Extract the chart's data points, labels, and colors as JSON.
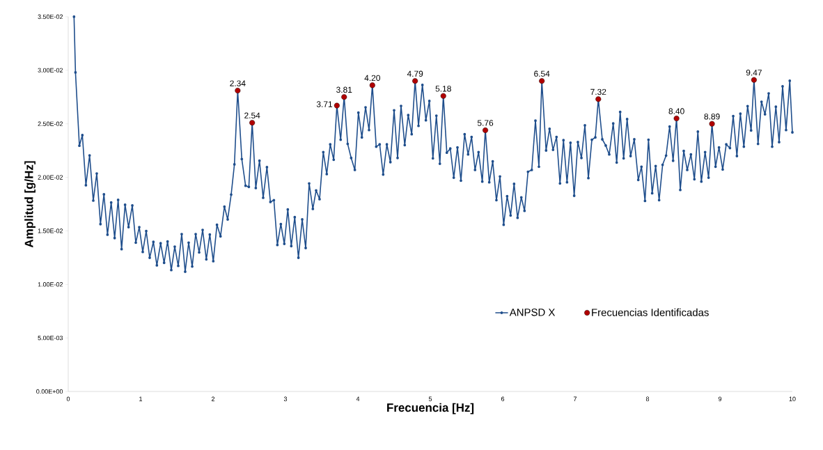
{
  "chart_data": {
    "type": "line",
    "xlabel": "Frecuencia [Hz]",
    "ylabel": "Amplitud [g/Hz]",
    "xlim": [
      0,
      10
    ],
    "ylim": [
      0,
      0.035
    ],
    "xticks": [
      0,
      1,
      2,
      3,
      4,
      5,
      6,
      7,
      8,
      9,
      10
    ],
    "yticks": [
      {
        "value": 0,
        "label": "0.00E+00"
      },
      {
        "value": 0.005,
        "label": "5.00E-03"
      },
      {
        "value": 0.01,
        "label": "1.00E-02"
      },
      {
        "value": 0.015,
        "label": "1.50E-02"
      },
      {
        "value": 0.02,
        "label": "2.00E-02"
      },
      {
        "value": 0.025,
        "label": "2.50E-02"
      },
      {
        "value": 0.03,
        "label": "3.00E-02"
      },
      {
        "value": 0.035,
        "label": "3.50E-02"
      }
    ],
    "legend": "bottom right",
    "series": [
      {
        "name": "ANPSD X",
        "color": "#1f4e8c",
        "marker": "circle",
        "x": [
          0.08,
          0.1,
          0.154,
          0.195,
          0.244,
          0.295,
          0.346,
          0.394,
          0.445,
          0.493,
          0.542,
          0.593,
          0.641,
          0.689,
          0.737,
          0.785,
          0.833,
          0.885,
          0.933,
          0.981,
          1.029,
          1.077,
          1.125,
          1.176,
          1.224,
          1.276,
          1.324,
          1.372,
          1.423,
          1.471,
          1.519,
          1.567,
          1.615,
          1.663,
          1.712,
          1.76,
          1.808,
          1.856,
          1.907,
          1.955,
          2.003,
          2.054,
          2.103,
          2.157,
          2.202,
          2.25,
          2.295,
          2.34,
          2.397,
          2.449,
          2.494,
          2.54,
          2.59,
          2.641,
          2.692,
          2.744,
          2.792,
          2.84,
          2.888,
          2.936,
          2.984,
          3.032,
          3.08,
          3.128,
          3.179,
          3.231,
          3.279,
          3.327,
          3.378,
          3.423,
          3.471,
          3.522,
          3.57,
          3.618,
          3.666,
          3.71,
          3.762,
          3.81,
          3.859,
          3.907,
          3.958,
          4.007,
          4.055,
          4.106,
          4.154,
          4.2,
          4.253,
          4.301,
          4.349,
          4.4,
          4.449,
          4.5,
          4.548,
          4.596,
          4.647,
          4.695,
          4.743,
          4.79,
          4.837,
          4.891,
          4.939,
          4.987,
          5.036,
          5.084,
          5.132,
          5.18,
          5.228,
          5.276,
          5.324,
          5.375,
          5.423,
          5.474,
          5.522,
          5.57,
          5.618,
          5.666,
          5.718,
          5.76,
          5.814,
          5.862,
          5.913,
          5.962,
          6.013,
          6.061,
          6.109,
          6.157,
          6.205,
          6.257,
          6.301,
          6.349,
          6.401,
          6.452,
          6.5,
          6.54,
          6.599,
          6.647,
          6.695,
          6.743,
          6.791,
          6.839,
          6.888,
          6.936,
          6.987,
          7.038,
          7.087,
          7.135,
          7.183,
          7.231,
          7.279,
          7.32,
          7.375,
          7.423,
          7.471,
          7.526,
          7.574,
          7.622,
          7.67,
          7.718,
          7.766,
          7.817,
          7.872,
          7.916,
          7.965,
          8.013,
          8.064,
          8.112,
          8.16,
          8.208,
          8.256,
          8.305,
          8.353,
          8.4,
          8.452,
          8.5,
          8.548,
          8.599,
          8.647,
          8.695,
          8.743,
          8.795,
          8.843,
          8.89,
          8.939,
          8.987,
          9.038,
          9.087,
          9.138,
          9.183,
          9.234,
          9.282,
          9.33,
          9.382,
          9.43,
          9.47,
          9.526,
          9.574,
          9.622,
          9.673,
          9.721,
          9.772,
          9.817,
          9.865,
          9.913,
          9.964,
          10.0
        ],
        "values": [
          0.035,
          0.0298,
          0.02295,
          0.02394,
          0.01926,
          0.02205,
          0.01783,
          0.02036,
          0.01563,
          0.01841,
          0.01464,
          0.01765,
          0.01433,
          0.01789,
          0.01329,
          0.01744,
          0.01535,
          0.01737,
          0.0139,
          0.01535,
          0.01303,
          0.01498,
          0.01249,
          0.01397,
          0.01178,
          0.01384,
          0.01202,
          0.01401,
          0.01134,
          0.01353,
          0.01173,
          0.0147,
          0.01119,
          0.0139,
          0.01167,
          0.0147,
          0.01299,
          0.01509,
          0.01234,
          0.01466,
          0.01217,
          0.01557,
          0.01449,
          0.01726,
          0.01607,
          0.01839,
          0.02121,
          0.0281,
          0.02171,
          0.01921,
          0.01911,
          0.0251,
          0.019,
          0.02155,
          0.01809,
          0.02095,
          0.0177,
          0.01787,
          0.01368,
          0.01563,
          0.01379,
          0.017,
          0.01358,
          0.01628,
          0.01249,
          0.01607,
          0.0134,
          0.01943,
          0.01705,
          0.01878,
          0.01796,
          0.02236,
          0.0203,
          0.02308,
          0.02164,
          0.0267,
          0.02351,
          0.0275,
          0.02312,
          0.02181,
          0.02069,
          0.02604,
          0.02373,
          0.02654,
          0.02442,
          0.0286,
          0.02286,
          0.02308,
          0.02026,
          0.02308,
          0.02142,
          0.02626,
          0.02181,
          0.02667,
          0.02301,
          0.02581,
          0.02403,
          0.029,
          0.02481,
          0.02863,
          0.02533,
          0.02713,
          0.02177,
          0.02576,
          0.02127,
          0.0276,
          0.0223,
          0.02269,
          0.01997,
          0.02279,
          0.01969,
          0.02403,
          0.02214,
          0.02377,
          0.02069,
          0.02236,
          0.0196,
          0.0244,
          0.01954,
          0.02149,
          0.01787,
          0.02008,
          0.01557,
          0.01824,
          0.01644,
          0.01939,
          0.01622,
          0.01813,
          0.01687,
          0.02052,
          0.02069,
          0.02529,
          0.02099,
          0.029,
          0.02251,
          0.02453,
          0.02257,
          0.02377,
          0.01943,
          0.02347,
          0.01954,
          0.02323,
          0.01828,
          0.02329,
          0.02181,
          0.02485,
          0.01993,
          0.02351,
          0.02373,
          0.0273,
          0.02355,
          0.02297,
          0.02214,
          0.02503,
          0.02138,
          0.02611,
          0.02177,
          0.02544,
          0.02199,
          0.02355,
          0.01976,
          0.02099,
          0.0178,
          0.02351,
          0.01851,
          0.02106,
          0.01787,
          0.02117,
          0.02203,
          0.02474,
          0.02155,
          0.0255,
          0.01882,
          0.02246,
          0.02069,
          0.02214,
          0.01982,
          0.02427,
          0.0196,
          0.02236,
          0.01997,
          0.025,
          0.02099,
          0.02279,
          0.02073,
          0.02308,
          0.02273,
          0.02572,
          0.02199,
          0.02594,
          0.02286,
          0.02665,
          0.02438,
          0.0291,
          0.02312,
          0.02706,
          0.02589,
          0.02784,
          0.02286,
          0.02659,
          0.02329,
          0.0285,
          0.02442,
          0.02902,
          0.0242
        ]
      },
      {
        "name": "Frecuencias Identificadas",
        "type": "scatter",
        "color": "#b00000",
        "marker": "circle",
        "x": [
          2.34,
          2.54,
          3.71,
          3.81,
          4.2,
          4.79,
          5.18,
          5.76,
          6.54,
          7.32,
          8.4,
          8.89,
          9.47
        ],
        "values": [
          0.0281,
          0.0251,
          0.0267,
          0.0275,
          0.0286,
          0.029,
          0.0276,
          0.0244,
          0.029,
          0.0273,
          0.0255,
          0.025,
          0.0291
        ]
      }
    ],
    "annotations": [
      {
        "text": "2.34",
        "x": 2.34,
        "y": 0.0281
      },
      {
        "text": "2.54",
        "x": 2.54,
        "y": 0.0251
      },
      {
        "text": "3.71",
        "x": 3.71,
        "y": 0.0267
      },
      {
        "text": "3.81",
        "x": 3.81,
        "y": 0.0275
      },
      {
        "text": "4.20",
        "x": 4.2,
        "y": 0.0286
      },
      {
        "text": "4.79",
        "x": 4.79,
        "y": 0.029
      },
      {
        "text": "5.18",
        "x": 5.18,
        "y": 0.0276
      },
      {
        "text": "5.76",
        "x": 5.76,
        "y": 0.0244
      },
      {
        "text": "6.54",
        "x": 6.54,
        "y": 0.029
      },
      {
        "text": "7.32",
        "x": 7.32,
        "y": 0.0273
      },
      {
        "text": "8.40",
        "x": 8.4,
        "y": 0.0255
      },
      {
        "text": "8.89",
        "x": 8.89,
        "y": 0.025
      },
      {
        "text": "9.47",
        "x": 9.47,
        "y": 0.0291
      }
    ]
  }
}
